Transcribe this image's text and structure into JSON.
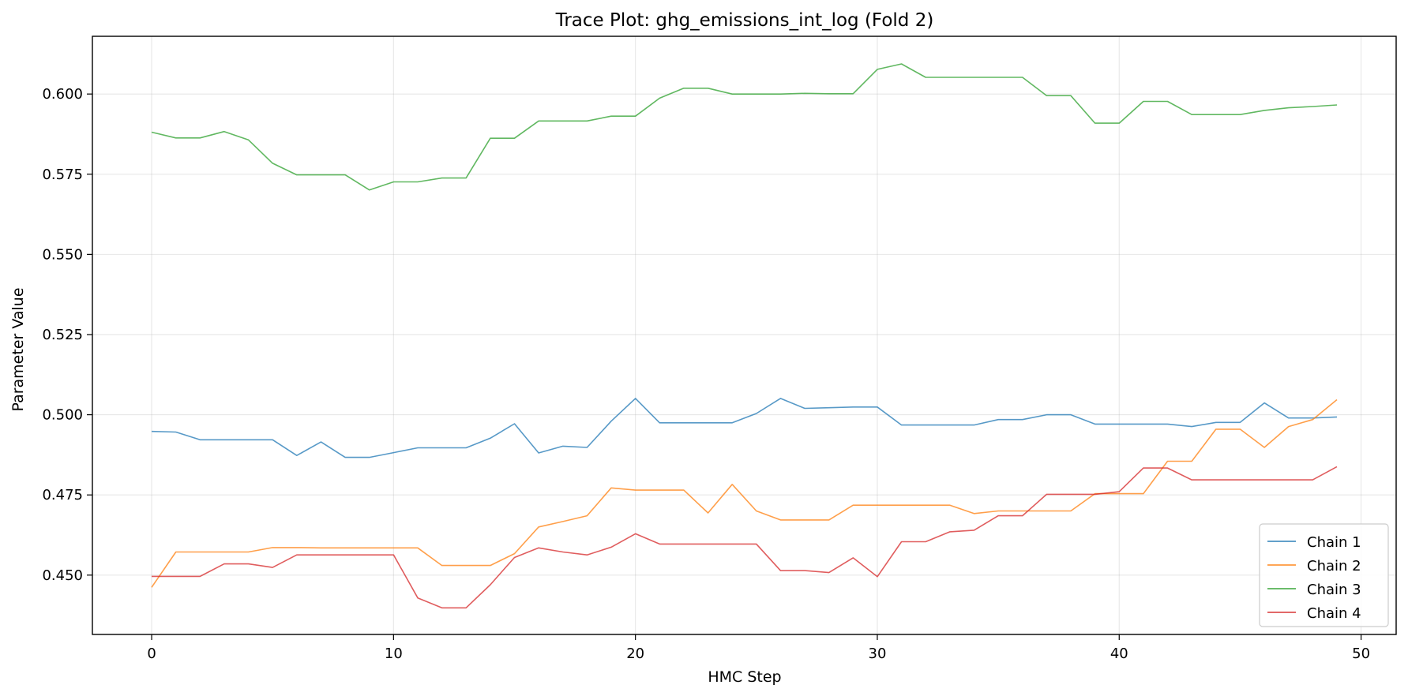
{
  "chart_data": {
    "type": "line",
    "title": "Trace Plot: ghg_emissions_int_log (Fold 2)",
    "xlabel": "HMC Step",
    "ylabel": "Parameter Value",
    "xlim": [
      -2.45,
      51.45
    ],
    "ylim": [
      0.4315,
      0.618
    ],
    "xticks": [
      0,
      10,
      20,
      30,
      40,
      50
    ],
    "xtick_labels": [
      "0",
      "10",
      "20",
      "30",
      "40",
      "50"
    ],
    "yticks": [
      0.45,
      0.475,
      0.5,
      0.525,
      0.55,
      0.575,
      0.6
    ],
    "ytick_labels": [
      "0.450",
      "0.475",
      "0.500",
      "0.525",
      "0.550",
      "0.575",
      "0.600"
    ],
    "grid": true,
    "legend_position": "bottom-right",
    "x": [
      0,
      1,
      2,
      3,
      4,
      5,
      6,
      7,
      8,
      9,
      10,
      11,
      12,
      13,
      14,
      15,
      16,
      17,
      18,
      19,
      20,
      21,
      22,
      23,
      24,
      25,
      26,
      27,
      28,
      29,
      30,
      31,
      32,
      33,
      34,
      35,
      36,
      37,
      38,
      39,
      40,
      41,
      42,
      43,
      44,
      45,
      46,
      47,
      48,
      49
    ],
    "series": [
      {
        "name": "Chain 1",
        "color": "#1f77b4",
        "values": [
          0.4948,
          0.4946,
          0.4922,
          0.4922,
          0.4922,
          0.4922,
          0.4873,
          0.4915,
          0.4867,
          0.4867,
          0.4882,
          0.4897,
          0.4897,
          0.4897,
          0.4927,
          0.4972,
          0.4881,
          0.4902,
          0.4898,
          0.498,
          0.5051,
          0.4975,
          0.4975,
          0.4975,
          0.4975,
          0.5004,
          0.5051,
          0.502,
          0.5022,
          0.5024,
          0.5024,
          0.4968,
          0.4968,
          0.4968,
          0.4968,
          0.4985,
          0.4985,
          0.5,
          0.5,
          0.4971,
          0.4971,
          0.4971,
          0.4971,
          0.4963,
          0.4976,
          0.4976,
          0.5037,
          0.499,
          0.499,
          0.4993
        ]
      },
      {
        "name": "Chain 2",
        "color": "#ff7f0e",
        "values": [
          0.4462,
          0.4572,
          0.4572,
          0.4572,
          0.4572,
          0.4586,
          0.4586,
          0.4585,
          0.4585,
          0.4585,
          0.4585,
          0.4585,
          0.453,
          0.453,
          0.453,
          0.4567,
          0.465,
          0.4667,
          0.4685,
          0.4772,
          0.4765,
          0.4765,
          0.4765,
          0.4694,
          0.4783,
          0.47,
          0.4672,
          0.4672,
          0.4672,
          0.4718,
          0.4718,
          0.4718,
          0.4718,
          0.4718,
          0.4692,
          0.47,
          0.47,
          0.47,
          0.47,
          0.4754,
          0.4754,
          0.4754,
          0.4855,
          0.4855,
          0.4955,
          0.4955,
          0.4898,
          0.4963,
          0.4985,
          0.5047
        ]
      },
      {
        "name": "Chain 3",
        "color": "#2ca02c",
        "values": [
          0.5881,
          0.5863,
          0.5863,
          0.5883,
          0.5857,
          0.5784,
          0.5748,
          0.5748,
          0.5748,
          0.5701,
          0.5726,
          0.5726,
          0.5738,
          0.5738,
          0.5862,
          0.5862,
          0.5916,
          0.5916,
          0.5916,
          0.5931,
          0.5931,
          0.5987,
          0.6018,
          0.6018,
          0.6,
          0.6,
          0.6,
          0.6002,
          0.6001,
          0.6001,
          0.6077,
          0.6094,
          0.6052,
          0.6052,
          0.6052,
          0.6052,
          0.6052,
          0.5995,
          0.5995,
          0.5909,
          0.5909,
          0.5977,
          0.5977,
          0.5936,
          0.5936,
          0.5936,
          0.5949,
          0.5957,
          0.5961,
          0.5966
        ]
      },
      {
        "name": "Chain 4",
        "color": "#d62728",
        "values": [
          0.4496,
          0.4496,
          0.4496,
          0.4535,
          0.4535,
          0.4524,
          0.4563,
          0.4563,
          0.4563,
          0.4563,
          0.4563,
          0.4429,
          0.4398,
          0.4398,
          0.447,
          0.4555,
          0.4585,
          0.4572,
          0.4563,
          0.4587,
          0.4629,
          0.4597,
          0.4597,
          0.4597,
          0.4597,
          0.4597,
          0.4514,
          0.4514,
          0.4508,
          0.4554,
          0.4495,
          0.4604,
          0.4604,
          0.4635,
          0.464,
          0.4685,
          0.4685,
          0.4752,
          0.4752,
          0.4752,
          0.476,
          0.4834,
          0.4834,
          0.4797,
          0.4797,
          0.4797,
          0.4797,
          0.4797,
          0.4797,
          0.4838
        ]
      }
    ]
  }
}
